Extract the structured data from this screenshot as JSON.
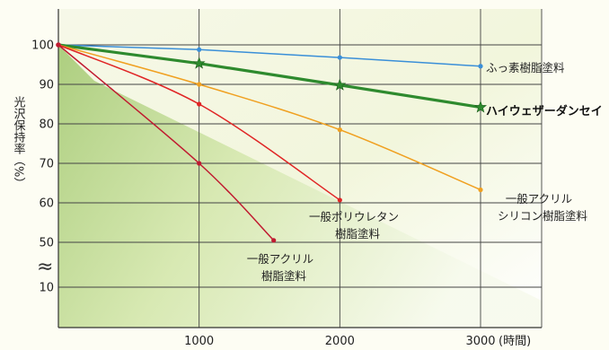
{
  "chart_data": {
    "type": "line",
    "x": [
      0,
      1000,
      2000,
      3000
    ],
    "xlim": [
      0,
      3000
    ],
    "x_ticks": [
      {
        "value": 1000,
        "label": "1000"
      },
      {
        "value": 2000,
        "label": "2000"
      },
      {
        "value": 3000,
        "label": "3000"
      }
    ],
    "x_unit": "(時間)",
    "ylabel": "光沢保持率（%）",
    "y_ticks": [
      "100",
      "90",
      "80",
      "70",
      "60",
      "50",
      "10"
    ],
    "axis_break_symbol": "≈",
    "grid": true,
    "series": [
      {
        "name": "ふっ素樹脂塗料",
        "label_lines": [
          "ふっ素樹脂塗料"
        ],
        "color": "#3a8fd8",
        "marker": "dot",
        "points": [
          [
            0,
            100
          ],
          [
            1000,
            98.8
          ],
          [
            2000,
            96.8
          ],
          [
            3000,
            94.6
          ]
        ]
      },
      {
        "name": "ハイウェザーダンセイ",
        "label_lines": [
          "ハイウェザーダンセイ"
        ],
        "color": "#2e8a2e",
        "marker": "star",
        "bold": true,
        "points": [
          [
            0,
            100
          ],
          [
            1000,
            95.3
          ],
          [
            2000,
            89.8
          ],
          [
            3000,
            84.2
          ]
        ]
      },
      {
        "name": "一般アクリルシリコン樹脂塗料",
        "label_lines": [
          "一般アクリル",
          "シリコン樹脂塗料"
        ],
        "color": "#f0a020",
        "marker": "dot",
        "points": [
          [
            0,
            100
          ],
          [
            1000,
            90
          ],
          [
            2000,
            78.5
          ],
          [
            3000,
            63.3
          ]
        ]
      },
      {
        "name": "一般ポリウレタン樹脂塗料",
        "label_lines": [
          "一般ポリウレタン",
          "樹脂塗料"
        ],
        "color": "#e02525",
        "marker": "dot",
        "points": [
          [
            0,
            100
          ],
          [
            1000,
            85
          ],
          [
            2000,
            60.7
          ]
        ]
      },
      {
        "name": "一般アクリル樹脂塗料",
        "label_lines": [
          "一般アクリル",
          "樹脂塗料"
        ],
        "color": "#c01a30",
        "marker": "dot",
        "points": [
          [
            0,
            100
          ],
          [
            1000,
            70
          ],
          [
            1530,
            50.5
          ]
        ]
      }
    ]
  }
}
